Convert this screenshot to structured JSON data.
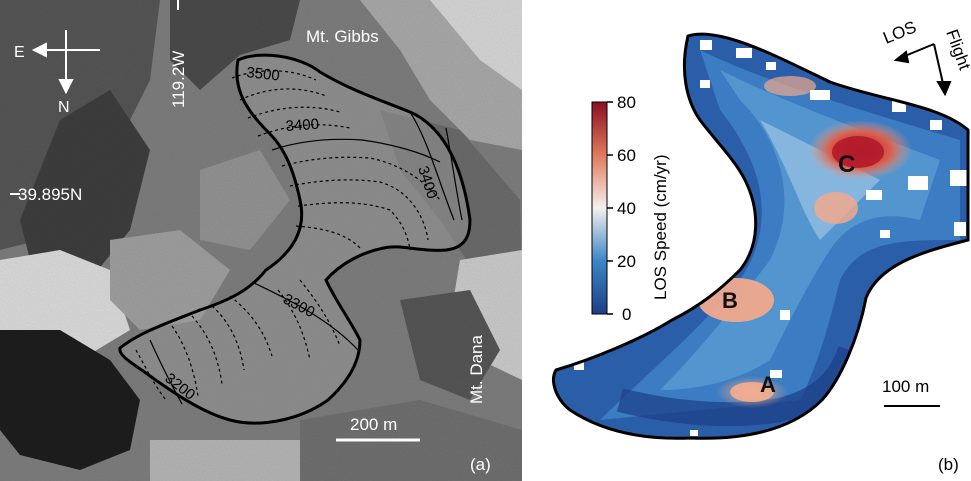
{
  "panel_a": {
    "label": "(a)",
    "compass": {
      "east": "E",
      "north": "N"
    },
    "places": {
      "gibbs": "Mt. Gibbs",
      "dana": "Mt. Dana"
    },
    "coords": {
      "longitude": "119.2W",
      "latitude": "39.895N"
    },
    "contours": [
      "3500",
      "3400",
      "3400",
      "3300",
      "3200"
    ],
    "scale_bar": "200 m"
  },
  "panel_b": {
    "label": "(b)",
    "directions": {
      "los": "LOS",
      "flight": "Flight"
    },
    "colorbar": {
      "title": "LOS Speed (cm/yr)",
      "ticks": [
        "80",
        "60",
        "40",
        "20",
        "0"
      ],
      "colors": [
        "#ffffff",
        "#e8957a",
        "#b2182b",
        "#3a7cc0",
        "#1a4a8c"
      ]
    },
    "hotspots": {
      "a": "A",
      "b": "B",
      "c": "C"
    },
    "scale_bar": "100 m"
  }
}
